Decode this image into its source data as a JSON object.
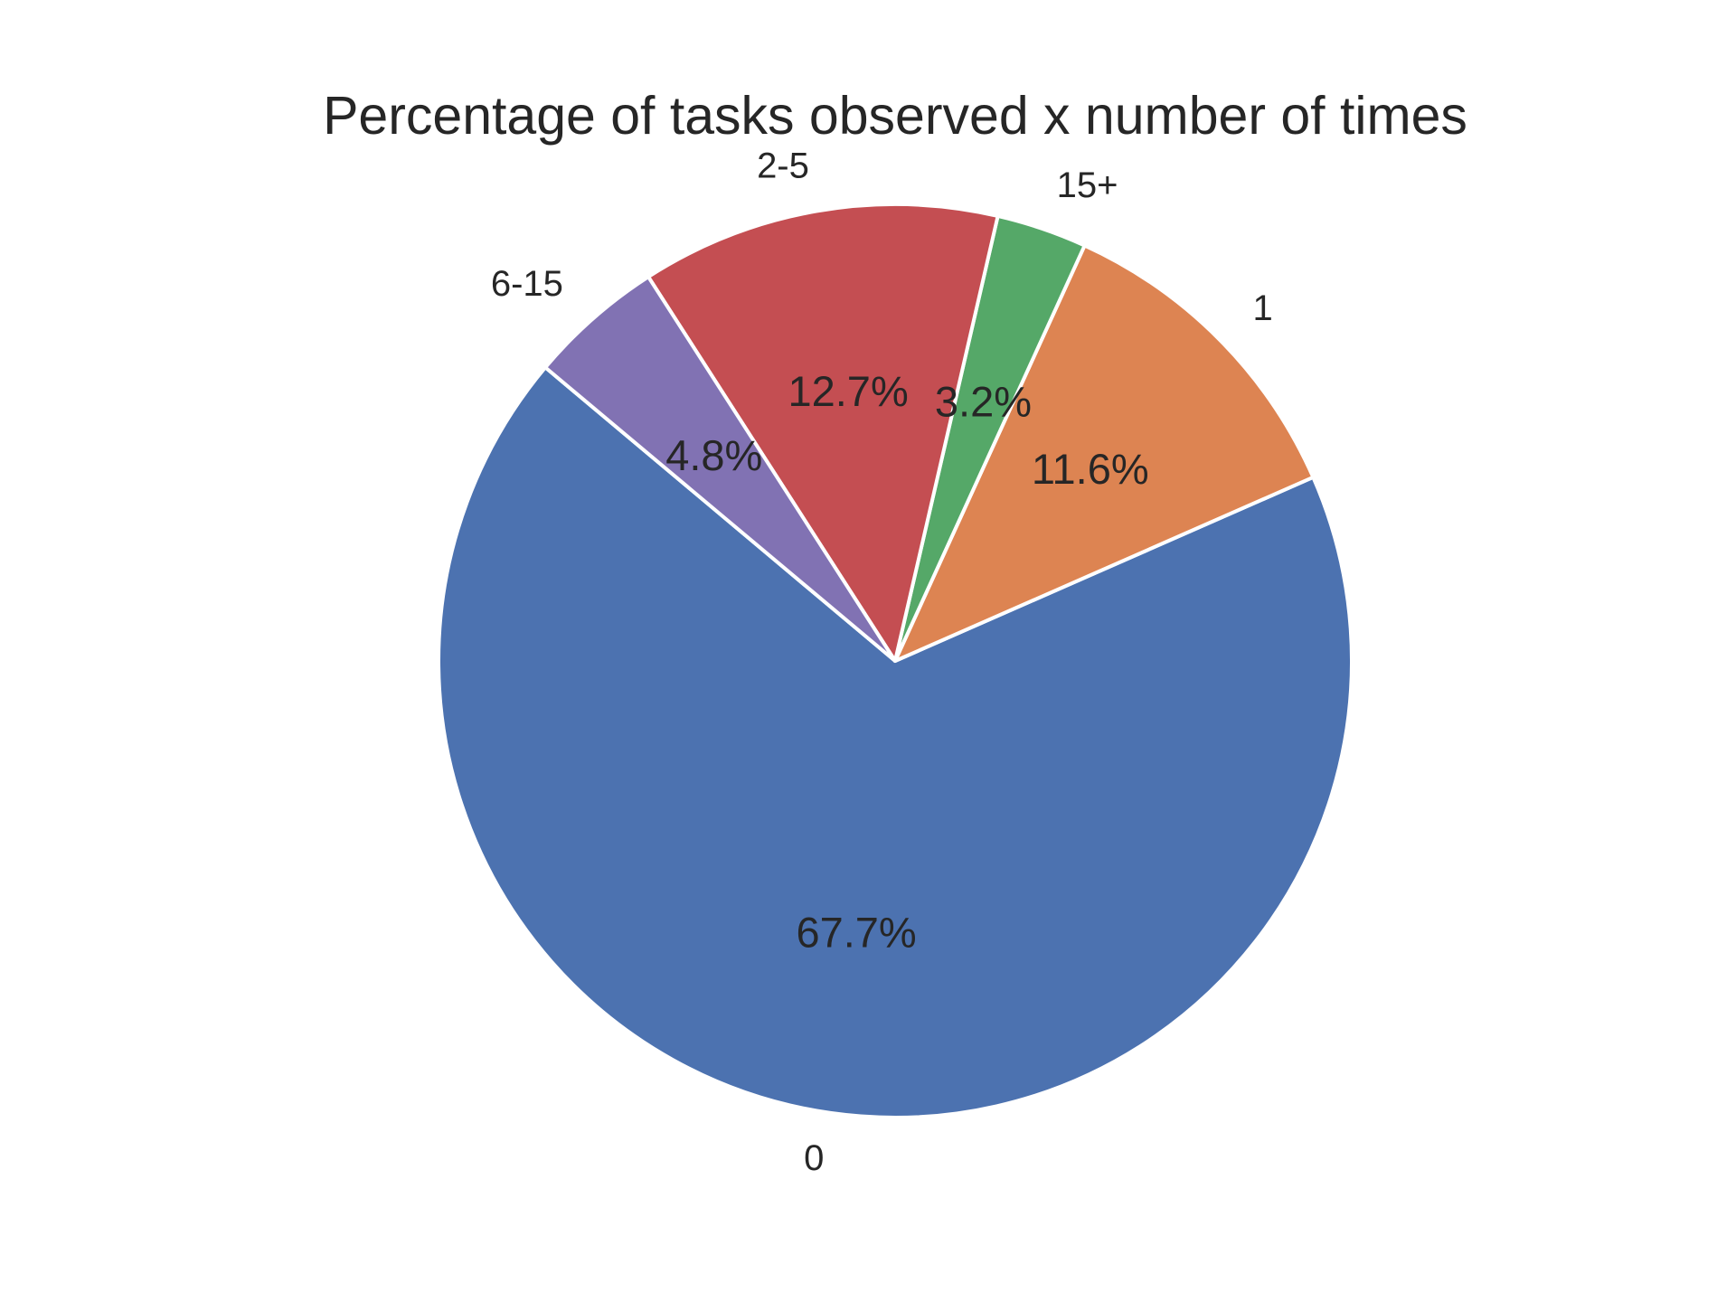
{
  "chart_data": {
    "type": "pie",
    "title": "Percentage of tasks observed x number of times",
    "slices": [
      {
        "label": "0",
        "value": 67.7,
        "pct_label": "67.7%",
        "color": "#4c72b0"
      },
      {
        "label": "1",
        "value": 11.6,
        "pct_label": "11.6%",
        "color": "#dd8452"
      },
      {
        "label": "15+",
        "value": 3.2,
        "pct_label": "3.2%",
        "color": "#55a868"
      },
      {
        "label": "2-5",
        "value": 12.7,
        "pct_label": "12.7%",
        "color": "#c44e52"
      },
      {
        "label": "6-15",
        "value": 4.8,
        "pct_label": "4.8%",
        "color": "#8172b3"
      }
    ],
    "legend": "none"
  }
}
